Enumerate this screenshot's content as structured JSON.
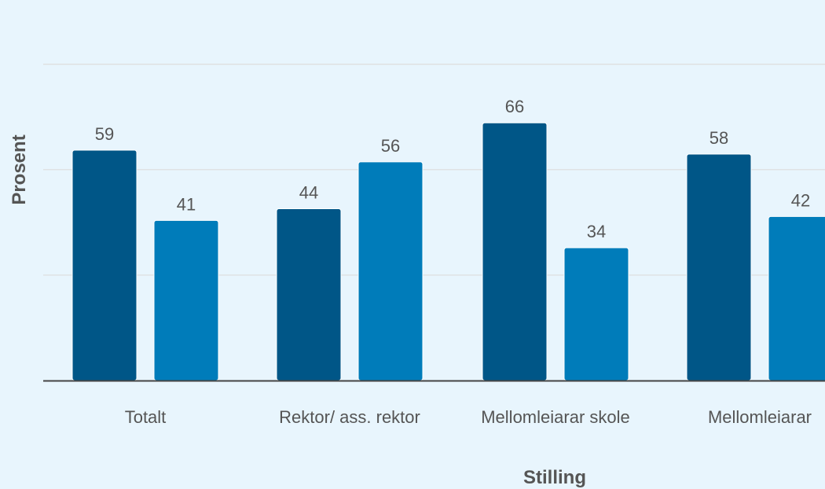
{
  "chart_data": {
    "type": "bar",
    "xlabel": "Stilling",
    "ylabel": "Prosent",
    "ylim": [
      0,
      80
    ],
    "grid": true,
    "categories": [
      "Totalt",
      "Rektor/ ass. rektor",
      "Mellomleiarar skole",
      "Mellomleiarar"
    ],
    "series": [
      {
        "values": [
          59,
          44,
          66,
          58
        ],
        "color": "#005687"
      },
      {
        "values": [
          41,
          56,
          34,
          42
        ],
        "color": "#007cba"
      }
    ],
    "data_labels": true
  },
  "colors": {
    "background": "#e8f5fd",
    "gridline": "#dcdcdc",
    "axis_line": "#444444",
    "text": "#555555"
  }
}
